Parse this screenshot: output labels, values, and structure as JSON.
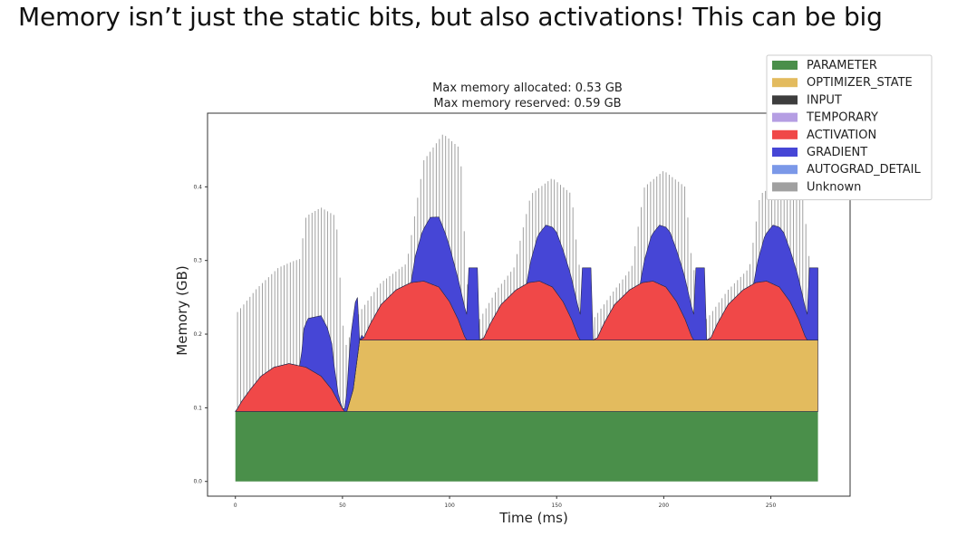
{
  "slide": {
    "title": "Memory isn’t just the static bits, but also activations! This can be big"
  },
  "chart_data": {
    "type": "area",
    "stacked": true,
    "title_lines": [
      "Max memory allocated: 0.53 GB",
      "Max memory reserved: 0.59 GB"
    ],
    "xlabel": "Time (ms)",
    "ylabel": "Memory (GB)",
    "xlim": [
      -13,
      287
    ],
    "ylim": [
      -0.02,
      0.5
    ],
    "xticks": [
      0,
      50,
      100,
      150,
      200,
      250
    ],
    "yticks": [
      0.0,
      0.1,
      0.2,
      0.3,
      0.4
    ],
    "xtick_labels": [
      "0",
      "50",
      "100",
      "150",
      "200",
      "250"
    ],
    "ytick_labels": [
      "0.0",
      "0.1",
      "0.2",
      "0.3",
      "0.4"
    ],
    "legend_position": "top-right",
    "legend": [
      {
        "name": "PARAMETER",
        "color": "#4a8f4a"
      },
      {
        "name": "OPTIMIZER_STATE",
        "color": "#e3bb5e"
      },
      {
        "name": "INPUT",
        "color": "#3d3d3d"
      },
      {
        "name": "TEMPORARY",
        "color": "#b59ee3"
      },
      {
        "name": "ACTIVATION",
        "color": "#f04848"
      },
      {
        "name": "GRADIENT",
        "color": "#4646d6"
      },
      {
        "name": "AUTOGRAD_DETAIL",
        "color": "#7b98e8"
      },
      {
        "name": "Unknown",
        "color": "#a0a0a0"
      }
    ],
    "series": [
      {
        "name": "PARAMETER",
        "color": "#4a8f4a",
        "points": [
          [
            0,
            0.095
          ],
          [
            272,
            0.095
          ]
        ]
      },
      {
        "name": "OPTIMIZER_STATE",
        "color": "#e3bb5e",
        "points": [
          [
            0,
            0
          ],
          [
            52,
            0
          ],
          [
            55,
            0.03
          ],
          [
            58,
            0.097
          ],
          [
            272,
            0.097
          ]
        ]
      },
      {
        "name": "ACTIVATION",
        "color": "#f04848",
        "points": [
          [
            0,
            0
          ],
          [
            1,
            0.004
          ],
          [
            3,
            0.014
          ],
          [
            7,
            0.03
          ],
          [
            12,
            0.048
          ],
          [
            18,
            0.06
          ],
          [
            25,
            0.065
          ],
          [
            33,
            0.06
          ],
          [
            40,
            0.048
          ],
          [
            45,
            0.03
          ],
          [
            48,
            0.014
          ],
          [
            50,
            0.004
          ],
          [
            51,
            0
          ],
          [
            58,
            0
          ],
          [
            60,
            0.003
          ],
          [
            63,
            0.022
          ],
          [
            68,
            0.048
          ],
          [
            75,
            0.068
          ],
          [
            82,
            0.078
          ],
          [
            88,
            0.08
          ],
          [
            95,
            0.072
          ],
          [
            100,
            0.052
          ],
          [
            104,
            0.028
          ],
          [
            107,
            0.005
          ],
          [
            108,
            0
          ],
          [
            114,
            0
          ],
          [
            116,
            0.003
          ],
          [
            119,
            0.022
          ],
          [
            124,
            0.048
          ],
          [
            131,
            0.068
          ],
          [
            137,
            0.078
          ],
          [
            142,
            0.08
          ],
          [
            148,
            0.072
          ],
          [
            153,
            0.052
          ],
          [
            157,
            0.028
          ],
          [
            160,
            0.005
          ],
          [
            161,
            0
          ],
          [
            167,
            0
          ],
          [
            169,
            0.003
          ],
          [
            172,
            0.022
          ],
          [
            177,
            0.048
          ],
          [
            184,
            0.068
          ],
          [
            190,
            0.078
          ],
          [
            195,
            0.08
          ],
          [
            201,
            0.072
          ],
          [
            206,
            0.052
          ],
          [
            210,
            0.028
          ],
          [
            213,
            0.005
          ],
          [
            214,
            0
          ],
          [
            220,
            0
          ],
          [
            222,
            0.003
          ],
          [
            225,
            0.022
          ],
          [
            230,
            0.048
          ],
          [
            237,
            0.068
          ],
          [
            243,
            0.078
          ],
          [
            248,
            0.08
          ],
          [
            254,
            0.072
          ],
          [
            259,
            0.052
          ],
          [
            263,
            0.028
          ],
          [
            266,
            0.005
          ],
          [
            267,
            0
          ],
          [
            272,
            0
          ]
        ]
      },
      {
        "name": "GRADIENT",
        "color": "#4646d6",
        "points": [
          [
            0,
            0
          ],
          [
            30,
            0
          ],
          [
            31,
            0.02
          ],
          [
            32,
            0.052
          ],
          [
            34,
            0.068
          ],
          [
            37,
            0.075
          ],
          [
            40,
            0.082
          ],
          [
            43,
            0.076
          ],
          [
            45,
            0.062
          ],
          [
            46,
            0.04
          ],
          [
            47,
            0.025
          ],
          [
            48,
            0.01
          ],
          [
            49,
            0.004
          ],
          [
            50,
            0
          ],
          [
            51,
            0.004
          ],
          [
            52,
            0.025
          ],
          [
            53,
            0.06
          ],
          [
            54,
            0.085
          ],
          [
            55,
            0.097
          ],
          [
            56,
            0.096
          ],
          [
            57,
            0.08
          ],
          [
            58,
            0
          ],
          [
            59,
            0.005
          ],
          [
            60,
            0
          ],
          [
            82,
            0
          ],
          [
            84,
            0.035
          ],
          [
            87,
            0.065
          ],
          [
            91,
            0.09
          ],
          [
            95,
            0.095
          ],
          [
            98,
            0.085
          ],
          [
            101,
            0.07
          ],
          [
            103,
            0.06
          ],
          [
            106,
            0.045
          ],
          [
            108,
            0.035
          ],
          [
            109,
            0.098
          ],
          [
            113,
            0.098
          ],
          [
            114,
            0
          ],
          [
            136,
            0
          ],
          [
            138,
            0.03
          ],
          [
            141,
            0.06
          ],
          [
            145,
            0.08
          ],
          [
            150,
            0.082
          ],
          [
            153,
            0.07
          ],
          [
            156,
            0.06
          ],
          [
            159,
            0.045
          ],
          [
            161,
            0.035
          ],
          [
            162,
            0.098
          ],
          [
            166,
            0.098
          ],
          [
            167,
            0
          ],
          [
            189,
            0
          ],
          [
            191,
            0.03
          ],
          [
            194,
            0.06
          ],
          [
            198,
            0.08
          ],
          [
            203,
            0.082
          ],
          [
            206,
            0.07
          ],
          [
            209,
            0.06
          ],
          [
            212,
            0.045
          ],
          [
            214,
            0.035
          ],
          [
            215,
            0.098
          ],
          [
            219,
            0.098
          ],
          [
            220,
            0
          ],
          [
            242,
            0
          ],
          [
            244,
            0.03
          ],
          [
            247,
            0.06
          ],
          [
            251,
            0.08
          ],
          [
            256,
            0.082
          ],
          [
            259,
            0.07
          ],
          [
            262,
            0.06
          ],
          [
            265,
            0.045
          ],
          [
            267,
            0.035
          ],
          [
            268,
            0.098
          ],
          [
            272,
            0.098
          ]
        ]
      },
      {
        "name": "Unknown",
        "color": "#a0a0a0",
        "style": "spikes",
        "envelope": [
          [
            1,
            0.23
          ],
          [
            10,
            0.262
          ],
          [
            20,
            0.29
          ],
          [
            26,
            0.298
          ],
          [
            30,
            0.302
          ],
          [
            33,
            0.36
          ],
          [
            40,
            0.372
          ],
          [
            47,
            0.36
          ],
          [
            51,
            0.18
          ],
          [
            58,
            0.23
          ],
          [
            68,
            0.27
          ],
          [
            80,
            0.296
          ],
          [
            88,
            0.436
          ],
          [
            97,
            0.472
          ],
          [
            105,
            0.452
          ],
          [
            108,
            0.27
          ],
          [
            114,
            0.22
          ],
          [
            122,
            0.26
          ],
          [
            130,
            0.29
          ],
          [
            138,
            0.39
          ],
          [
            148,
            0.412
          ],
          [
            157,
            0.39
          ],
          [
            160,
            0.3
          ],
          [
            167,
            0.22
          ],
          [
            177,
            0.26
          ],
          [
            185,
            0.29
          ],
          [
            191,
            0.4
          ],
          [
            200,
            0.422
          ],
          [
            210,
            0.4
          ],
          [
            213,
            0.3
          ],
          [
            220,
            0.22
          ],
          [
            230,
            0.26
          ],
          [
            240,
            0.29
          ],
          [
            245,
            0.39
          ],
          [
            255,
            0.408
          ],
          [
            265,
            0.39
          ],
          [
            268,
            0.3
          ]
        ],
        "period": 1.45
      }
    ]
  }
}
